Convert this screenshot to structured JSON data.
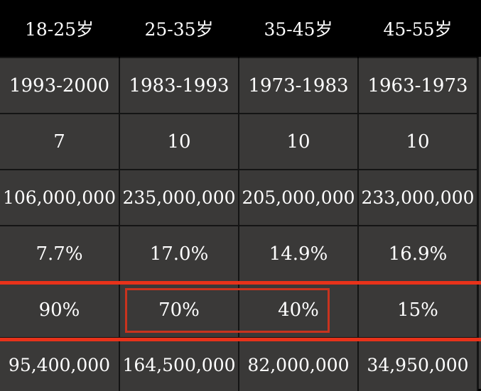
{
  "table": {
    "headers": [
      "18-25岁",
      "25-35岁",
      "35-45岁",
      "45-55岁"
    ],
    "rows": [
      [
        "1993-2000",
        "1983-1993",
        "1973-1983",
        "1963-1973"
      ],
      [
        "7",
        "10",
        "10",
        "10"
      ],
      [
        "106,000,000",
        "235,000,000",
        "205,000,000",
        "233,000,000"
      ],
      [
        "7.7%",
        "17.0%",
        "14.9%",
        "16.9%"
      ],
      [
        "90%",
        "70%",
        "40%",
        "15%"
      ],
      [
        "95,400,000",
        "164,500,000",
        "82,000,000",
        "34,950,000"
      ]
    ]
  },
  "colors": {
    "header_bg": "#000000",
    "cell_bg": "#3a3938",
    "text": "#ffffff",
    "highlight": "#e8321a"
  }
}
